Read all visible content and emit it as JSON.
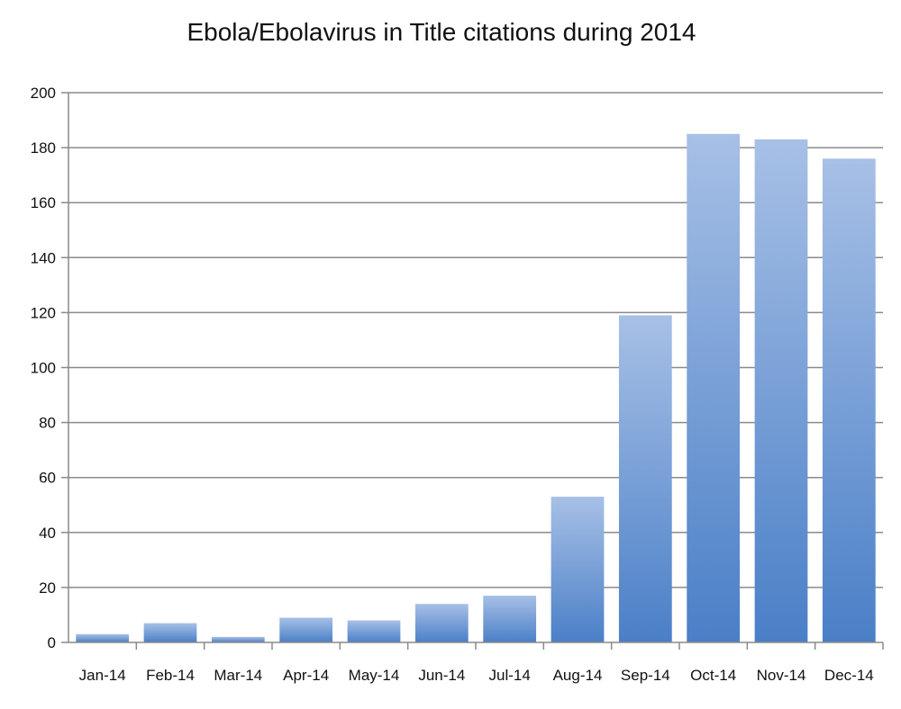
{
  "chart_data": {
    "type": "bar",
    "title": "Ebola/Ebolavirus in Title citations during 2014",
    "xlabel": "",
    "ylabel": "",
    "categories": [
      "Jan-14",
      "Feb-14",
      "Mar-14",
      "Apr-14",
      "May-14",
      "Jun-14",
      "Jul-14",
      "Aug-14",
      "Sep-14",
      "Oct-14",
      "Nov-14",
      "Dec-14"
    ],
    "values": [
      3,
      7,
      2,
      9,
      8,
      14,
      17,
      53,
      119,
      185,
      183,
      176
    ],
    "ylim": [
      0,
      200
    ],
    "yticks": [
      0,
      20,
      40,
      60,
      80,
      100,
      120,
      140,
      160,
      180,
      200
    ],
    "grid": true,
    "legend": "none",
    "colors": {
      "bar_top": "#a7c0e6",
      "bar_bottom": "#4a7fc7",
      "gridline": "#8a8a8a",
      "axis": "#8a8a8a"
    }
  }
}
